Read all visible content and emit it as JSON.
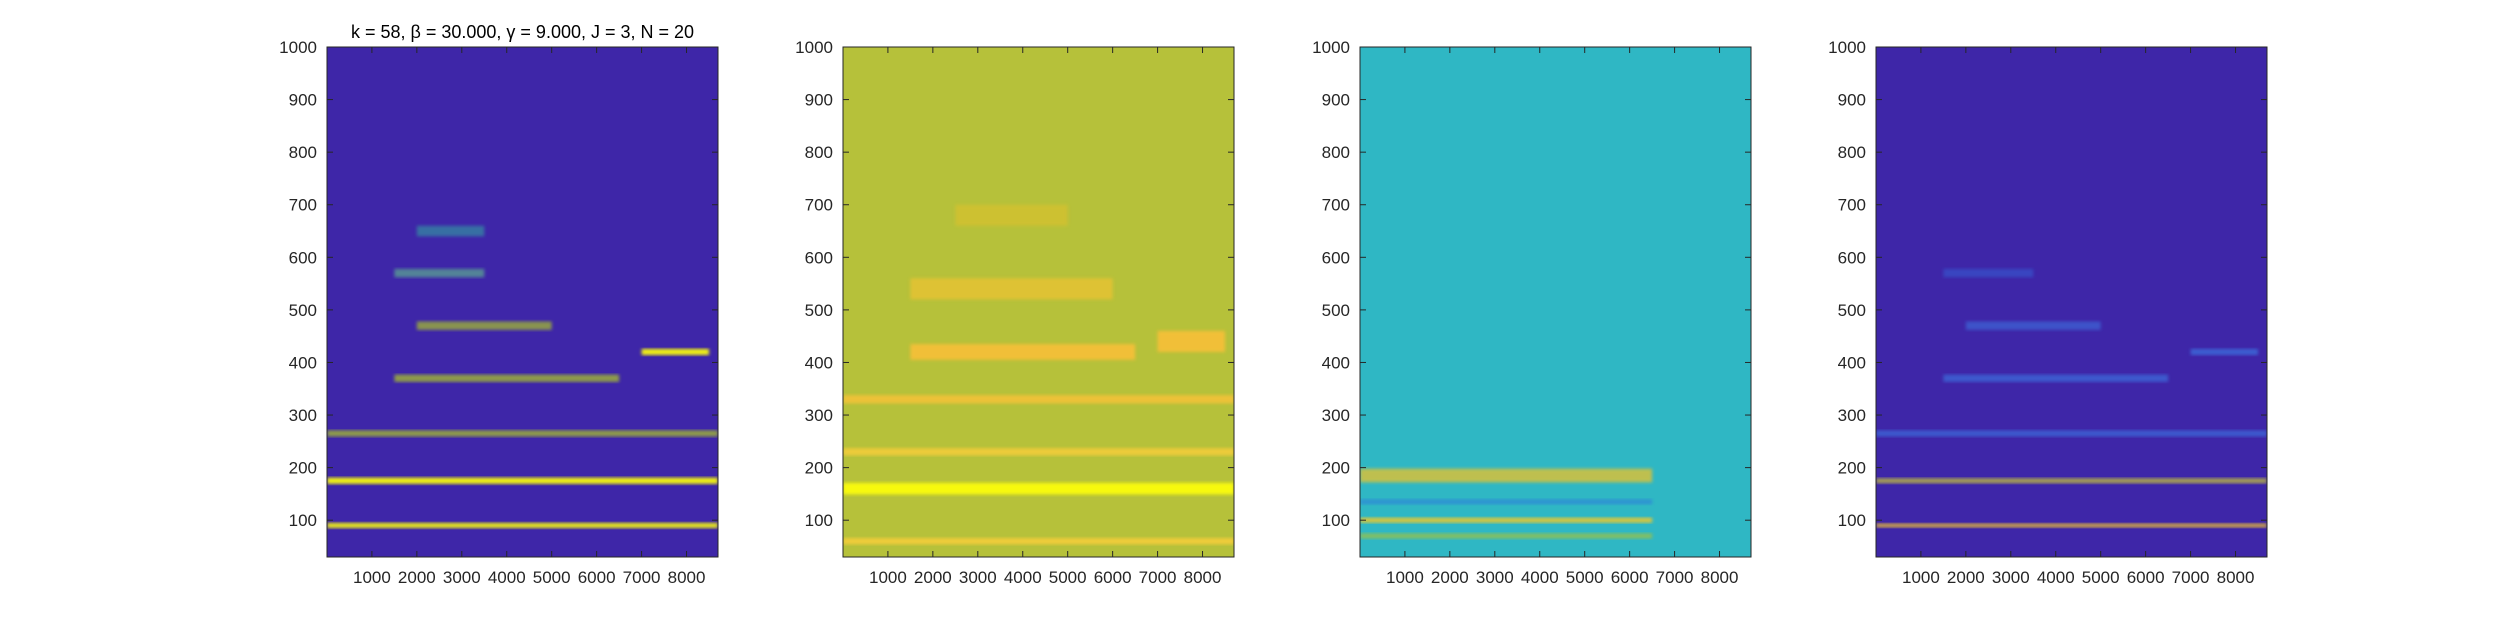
{
  "chart_data": [
    {
      "type": "heatmap",
      "title": "k = 58, β = 30.000, γ = 9.000, J = 3, N = 20",
      "xlabel": "",
      "ylabel": "",
      "xlim": [
        1,
        8700
      ],
      "ylim": [
        30,
        1000
      ],
      "xticks": [
        1000,
        2000,
        3000,
        4000,
        5000,
        6000,
        7000,
        8000
      ],
      "yticks": [
        100,
        200,
        300,
        400,
        500,
        600,
        700,
        800,
        900,
        1000
      ],
      "xtick_labels": [
        "1000",
        "2000",
        "3000",
        "4000",
        "5000",
        "6000",
        "7000",
        "8000"
      ],
      "ytick_labels": [
        "100",
        "200",
        "300",
        "400",
        "500",
        "600",
        "700",
        "800",
        "900",
        "1000"
      ],
      "colormap": "parula",
      "background_color": "#3e26a8",
      "bands": [
        {
          "y": 90,
          "width": 10,
          "x_start": 1,
          "x_end": 8700,
          "intensity": 0.9,
          "color": "#f9fb0e"
        },
        {
          "y": 175,
          "width": 12,
          "x_start": 1,
          "x_end": 8700,
          "intensity": 0.95,
          "color": "#f9fb0e"
        },
        {
          "y": 265,
          "width": 12,
          "x_start": 1,
          "x_end": 8700,
          "intensity": 0.75,
          "color": "#a9c22c"
        },
        {
          "y": 370,
          "width": 14,
          "x_start": 1500,
          "x_end": 6500,
          "intensity": 0.75,
          "color": "#a9c22c"
        },
        {
          "y": 420,
          "width": 12,
          "x_start": 7000,
          "x_end": 8500,
          "intensity": 0.95,
          "color": "#f9fb0e"
        },
        {
          "y": 470,
          "width": 16,
          "x_start": 2000,
          "x_end": 5000,
          "intensity": 0.7,
          "color": "#a9c22c"
        },
        {
          "y": 570,
          "width": 16,
          "x_start": 1500,
          "x_end": 3500,
          "intensity": 0.6,
          "color": "#62c28d"
        },
        {
          "y": 650,
          "width": 20,
          "x_start": 2000,
          "x_end": 3500,
          "intensity": 0.5,
          "color": "#33b7a0"
        }
      ]
    },
    {
      "type": "heatmap",
      "title": "",
      "xlabel": "",
      "ylabel": "",
      "xlim": [
        1,
        8700
      ],
      "ylim": [
        30,
        1000
      ],
      "xticks": [
        1000,
        2000,
        3000,
        4000,
        5000,
        6000,
        7000,
        8000
      ],
      "yticks": [
        100,
        200,
        300,
        400,
        500,
        600,
        700,
        800,
        900,
        1000
      ],
      "xtick_labels": [
        "1000",
        "2000",
        "3000",
        "4000",
        "5000",
        "6000",
        "7000",
        "8000"
      ],
      "ytick_labels": [
        "100",
        "200",
        "300",
        "400",
        "500",
        "600",
        "700",
        "800",
        "900",
        "1000"
      ],
      "colormap": "parula",
      "background_color": "#b6c13a",
      "bands": [
        {
          "y": 60,
          "width": 12,
          "x_start": 1,
          "x_end": 8700,
          "intensity": 0.9,
          "color": "#f6cd3b"
        },
        {
          "y": 160,
          "width": 22,
          "x_start": 1,
          "x_end": 8700,
          "intensity": 0.98,
          "color": "#f9fb0e"
        },
        {
          "y": 230,
          "width": 14,
          "x_start": 1,
          "x_end": 8700,
          "intensity": 0.85,
          "color": "#f6cd3b"
        },
        {
          "y": 330,
          "width": 16,
          "x_start": 1,
          "x_end": 8700,
          "intensity": 0.8,
          "color": "#fac239"
        },
        {
          "y": 420,
          "width": 30,
          "x_start": 1500,
          "x_end": 6500,
          "intensity": 0.85,
          "color": "#fcbf37"
        },
        {
          "y": 540,
          "width": 40,
          "x_start": 1500,
          "x_end": 6000,
          "intensity": 0.7,
          "color": "#f0c330"
        },
        {
          "y": 680,
          "width": 40,
          "x_start": 2500,
          "x_end": 5000,
          "intensity": 0.55,
          "color": "#e1c12c"
        },
        {
          "y": 440,
          "width": 40,
          "x_start": 7000,
          "x_end": 8500,
          "intensity": 0.85,
          "color": "#fcbf37"
        }
      ]
    },
    {
      "type": "heatmap",
      "title": "",
      "xlabel": "",
      "ylabel": "",
      "xlim": [
        1,
        8700
      ],
      "ylim": [
        30,
        1000
      ],
      "xticks": [
        1000,
        2000,
        3000,
        4000,
        5000,
        6000,
        7000,
        8000
      ],
      "yticks": [
        100,
        200,
        300,
        400,
        500,
        600,
        700,
        800,
        900,
        1000
      ],
      "xtick_labels": [
        "1000",
        "2000",
        "3000",
        "4000",
        "5000",
        "6000",
        "7000",
        "8000"
      ],
      "ytick_labels": [
        "100",
        "200",
        "300",
        "400",
        "500",
        "600",
        "700",
        "800",
        "900",
        "1000"
      ],
      "colormap": "parula",
      "background_color": "#2fb7c4",
      "bands": [
        {
          "y": 70,
          "width": 10,
          "x_start": 1,
          "x_end": 6500,
          "intensity": 0.7,
          "color": "#a6c23a"
        },
        {
          "y": 100,
          "width": 10,
          "x_start": 1,
          "x_end": 6500,
          "intensity": 0.85,
          "color": "#f2c92a"
        },
        {
          "y": 135,
          "width": 10,
          "x_start": 1,
          "x_end": 6500,
          "intensity": 0.4,
          "color": "#2f5fe6"
        },
        {
          "y": 185,
          "width": 26,
          "x_start": 1,
          "x_end": 6500,
          "intensity": 0.8,
          "color": "#e2c231"
        }
      ]
    },
    {
      "type": "heatmap",
      "title": "",
      "xlabel": "",
      "ylabel": "",
      "xlim": [
        1,
        8700
      ],
      "ylim": [
        30,
        1000
      ],
      "xticks": [
        1000,
        2000,
        3000,
        4000,
        5000,
        6000,
        7000,
        8000
      ],
      "yticks": [
        100,
        200,
        300,
        400,
        500,
        600,
        700,
        800,
        900,
        1000
      ],
      "xtick_labels": [
        "1000",
        "2000",
        "3000",
        "4000",
        "5000",
        "6000",
        "7000",
        "8000"
      ],
      "ytick_labels": [
        "100",
        "200",
        "300",
        "400",
        "500",
        "600",
        "700",
        "800",
        "900",
        "1000"
      ],
      "colormap": "parula",
      "background_color": "#3e26a8",
      "bands": [
        {
          "y": 90,
          "width": 8,
          "x_start": 1,
          "x_end": 8700,
          "intensity": 0.85,
          "color": "#e5b83a"
        },
        {
          "y": 175,
          "width": 10,
          "x_start": 1,
          "x_end": 8700,
          "intensity": 0.75,
          "color": "#c7c43a"
        },
        {
          "y": 265,
          "width": 12,
          "x_start": 1,
          "x_end": 8700,
          "intensity": 0.5,
          "color": "#3d8bf2"
        },
        {
          "y": 370,
          "width": 14,
          "x_start": 1500,
          "x_end": 6500,
          "intensity": 0.5,
          "color": "#3d8bf2"
        },
        {
          "y": 420,
          "width": 12,
          "x_start": 7000,
          "x_end": 8500,
          "intensity": 0.55,
          "color": "#3d8bf2"
        },
        {
          "y": 470,
          "width": 16,
          "x_start": 2000,
          "x_end": 5000,
          "intensity": 0.45,
          "color": "#3d8bf2"
        },
        {
          "y": 570,
          "width": 16,
          "x_start": 1500,
          "x_end": 3500,
          "intensity": 0.4,
          "color": "#3374e6"
        }
      ]
    }
  ]
}
